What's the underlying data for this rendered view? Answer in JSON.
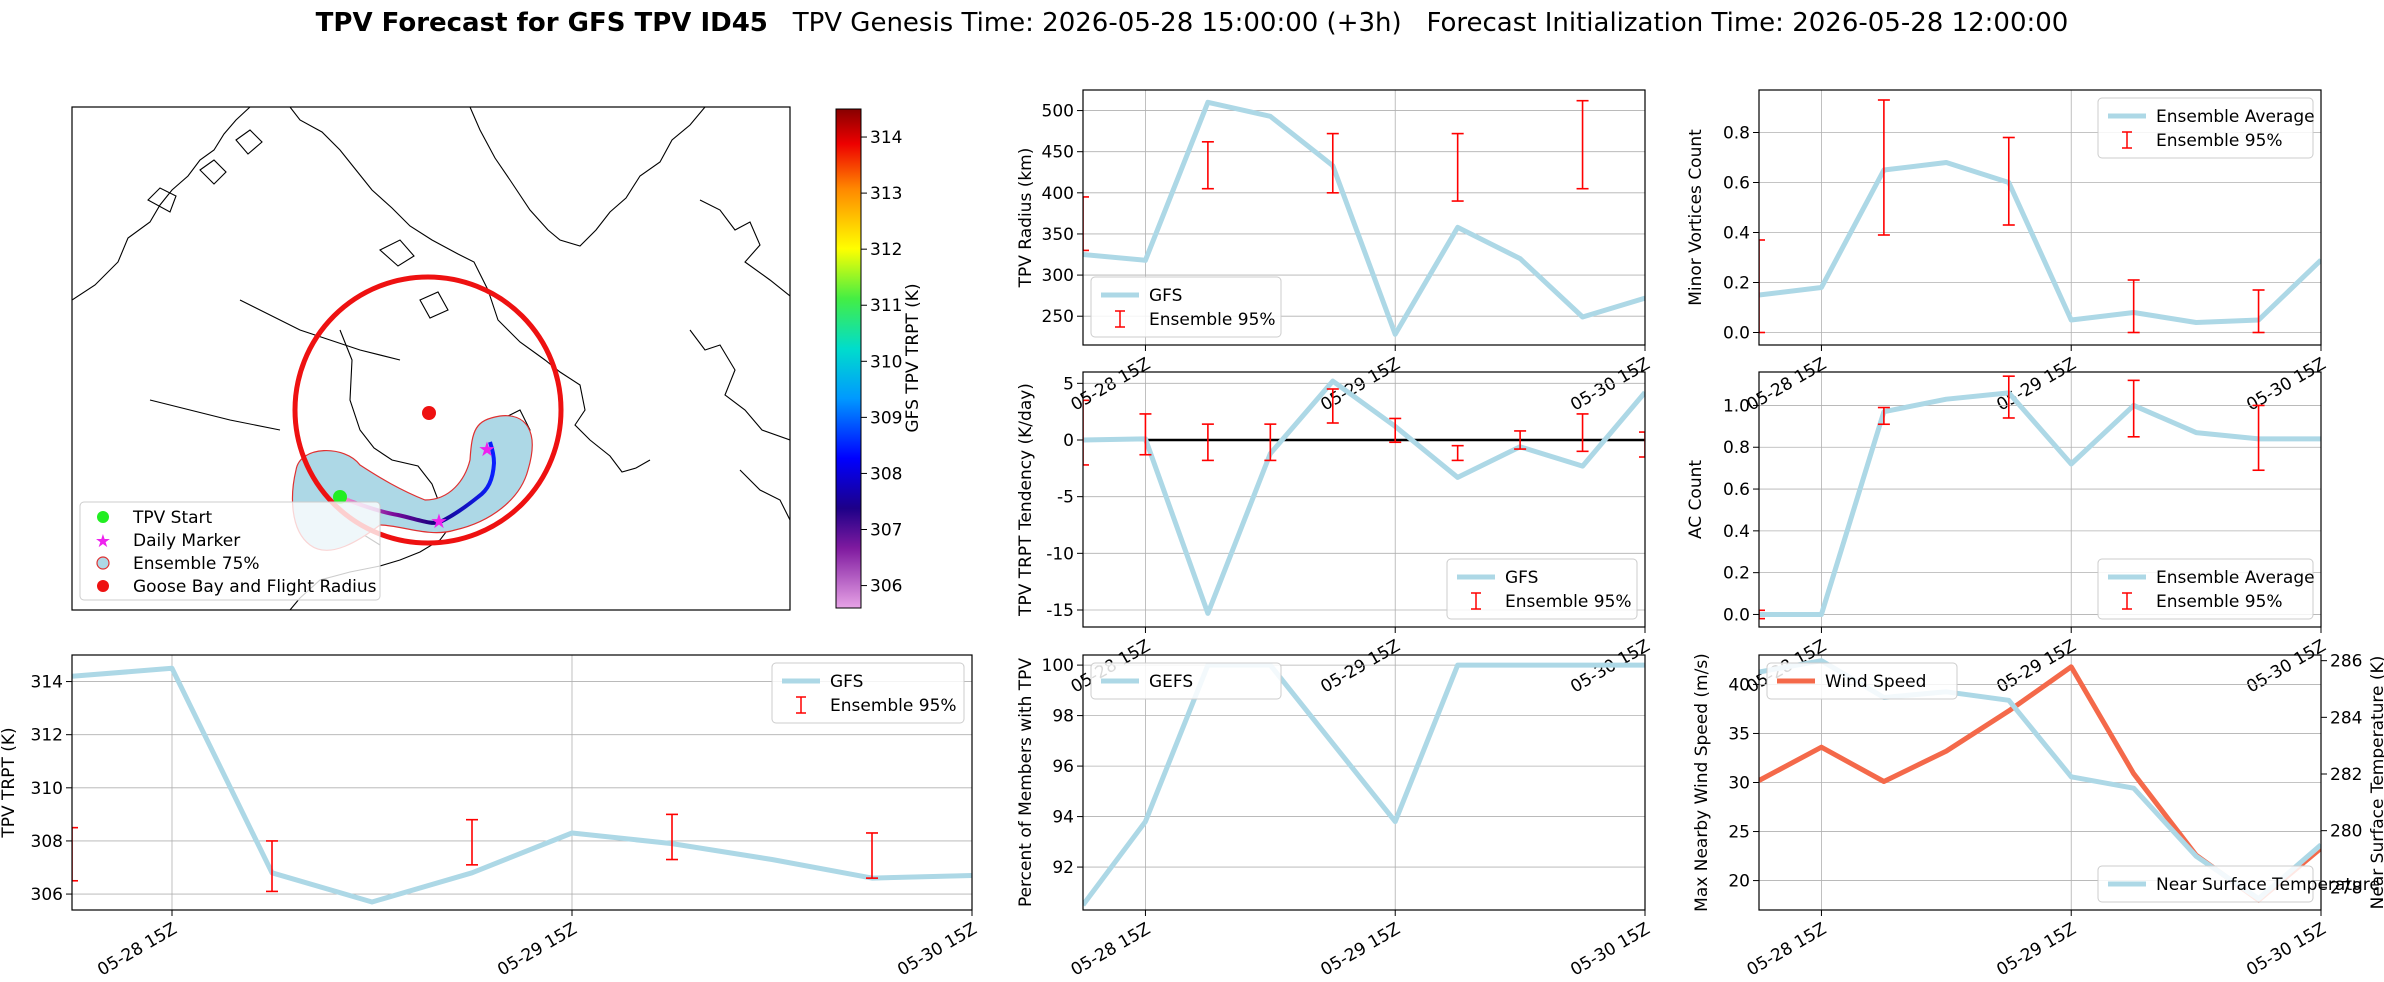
{
  "title": {
    "bold": "TPV Forecast for GFS TPV ID45",
    "rest": "TPV Genesis Time: 2026-05-28 15:00:00 (+3h)   Forecast Initialization Time: 2026-05-28 12:00:00"
  },
  "colors": {
    "main_line": "#add8e6",
    "error_bar": "#ff0000",
    "wind": "#f4694a",
    "temp_axis": "#4169e1"
  },
  "time_ticks": [
    "05-28 15Z",
    "05-29 15Z",
    "05-30 15Z"
  ],
  "map": {
    "colorbar_label": "GFS TPV TRPT (K)",
    "colorbar_ticks": [
      306,
      307,
      308,
      309,
      310,
      311,
      312,
      313,
      314
    ],
    "legend": [
      "TPV Start",
      "Daily Marker",
      "Ensemble 75%",
      "Goose Bay and Flight Radius"
    ]
  },
  "chart_data": [
    {
      "id": "radius",
      "type": "line",
      "ylabel": "TPV Radius (km)",
      "xlim": [
        0,
        18
      ],
      "ylim": [
        215,
        525
      ],
      "yticks": [
        250,
        300,
        350,
        400,
        450,
        500
      ],
      "series": [
        {
          "name": "GFS",
          "x": [
            0,
            2,
            4,
            6,
            8,
            10,
            12,
            14,
            16,
            18
          ],
          "y": [
            325,
            318,
            510,
            493,
            433,
            228,
            358,
            320,
            249,
            272
          ]
        }
      ],
      "errbars": {
        "name": "Ensemble 95%",
        "x": [
          0,
          4,
          8,
          12,
          16
        ],
        "lo": [
          330,
          405,
          400,
          390,
          405
        ],
        "hi": [
          395,
          462,
          472,
          472,
          512
        ]
      },
      "legend": "bottom-left"
    },
    {
      "id": "minor",
      "type": "line",
      "ylabel": "Minor Vortices Count",
      "xlim": [
        0,
        18
      ],
      "ylim": [
        -0.05,
        0.97
      ],
      "yticks": [
        0.0,
        0.2,
        0.4,
        0.6,
        0.8
      ],
      "series": [
        {
          "name": "Ensemble Average",
          "x": [
            0,
            2,
            4,
            6,
            8,
            10,
            12,
            14,
            16,
            18
          ],
          "y": [
            0.15,
            0.18,
            0.65,
            0.68,
            0.6,
            0.05,
            0.08,
            0.04,
            0.05,
            0.29
          ]
        }
      ],
      "errbars": {
        "name": "Ensemble 95%",
        "x": [
          0,
          4,
          8,
          12,
          16
        ],
        "lo": [
          0.0,
          0.39,
          0.43,
          0.0,
          0.0
        ],
        "hi": [
          0.37,
          0.93,
          0.78,
          0.21,
          0.17
        ]
      },
      "legend": "top-right"
    },
    {
      "id": "tend",
      "type": "line",
      "ylabel": "TPV TRPT Tendency (K/day)",
      "xlim": [
        0,
        18
      ],
      "ylim": [
        -16.5,
        6
      ],
      "yticks": [
        -15,
        -10,
        -5,
        0,
        5
      ],
      "series": [
        {
          "name": "GFS",
          "x": [
            0,
            2,
            4,
            6,
            8,
            10,
            12,
            14,
            16,
            18
          ],
          "y": [
            0.0,
            0.1,
            -15.3,
            -1.2,
            5.2,
            1.2,
            -3.3,
            -0.6,
            -2.3,
            4.2
          ]
        }
      ],
      "errbars": {
        "name": "Ensemble 95%",
        "x": [
          0,
          2,
          4,
          6,
          8,
          10,
          12,
          14,
          16,
          18
        ],
        "lo": [
          -2.2,
          -1.3,
          -1.8,
          -1.8,
          1.5,
          -0.2,
          -1.8,
          -0.8,
          -1.0,
          -1.5
        ],
        "hi": [
          3.5,
          2.3,
          1.4,
          1.4,
          4.5,
          1.9,
          -0.5,
          0.8,
          2.3,
          0.7
        ]
      },
      "hline": 0,
      "legend": "bottom-right"
    },
    {
      "id": "ac",
      "type": "line",
      "ylabel": "AC Count",
      "xlim": [
        0,
        18
      ],
      "ylim": [
        -0.06,
        1.16
      ],
      "yticks": [
        0.0,
        0.2,
        0.4,
        0.6,
        0.8,
        1.0
      ],
      "series": [
        {
          "name": "Ensemble Average",
          "x": [
            0,
            2,
            4,
            6,
            8,
            10,
            12,
            14,
            16,
            18
          ],
          "y": [
            0.0,
            0.0,
            0.97,
            1.03,
            1.06,
            0.72,
            1.0,
            0.87,
            0.84,
            0.84
          ]
        }
      ],
      "errbars": {
        "name": "Ensemble 95%",
        "x": [
          0,
          4,
          8,
          12,
          16
        ],
        "lo": [
          -0.02,
          0.91,
          0.94,
          0.85,
          0.69
        ],
        "hi": [
          0.02,
          0.99,
          1.14,
          1.12,
          1.0
        ]
      },
      "legend": "bottom-right"
    },
    {
      "id": "trpt",
      "type": "line",
      "ylabel": "TPV TRPT (K)",
      "xlim": [
        0,
        18
      ],
      "ylim": [
        305.4,
        315.0
      ],
      "yticks": [
        306,
        308,
        310,
        312,
        314
      ],
      "series": [
        {
          "name": "GFS",
          "x": [
            0,
            2,
            4,
            6,
            8,
            10,
            12,
            14,
            16,
            18
          ],
          "y": [
            314.2,
            314.5,
            306.8,
            305.7,
            306.8,
            308.3,
            307.9,
            307.3,
            306.6,
            306.7
          ]
        }
      ],
      "errbars": {
        "name": "Ensemble 95%",
        "x": [
          0,
          4,
          8,
          12,
          16
        ],
        "lo": [
          306.5,
          306.1,
          307.1,
          307.3,
          306.6
        ],
        "hi": [
          308.5,
          308.0,
          308.8,
          309.0,
          308.3
        ]
      },
      "legend": "top-right"
    },
    {
      "id": "members",
      "type": "line",
      "ylabel": "Percent of Members with TPV",
      "xlim": [
        0,
        18
      ],
      "ylim": [
        90.3,
        100.4
      ],
      "yticks": [
        92,
        94,
        96,
        98,
        100
      ],
      "series": [
        {
          "name": "GEFS",
          "x": [
            0,
            2,
            4,
            6,
            8,
            10,
            12,
            14,
            16,
            18
          ],
          "y": [
            90.5,
            93.8,
            100,
            100,
            96.9,
            93.8,
            100,
            100,
            100,
            100
          ]
        }
      ],
      "legend": "top-left"
    },
    {
      "id": "wind",
      "type": "line",
      "ylabel": "Max Nearby Wind Speed (m/s)",
      "ylabel2": "Near Surface Temperature (K)",
      "xlim": [
        0,
        18
      ],
      "ylim": [
        17,
        43
      ],
      "yticks": [
        20,
        25,
        30,
        35,
        40
      ],
      "ylim2": [
        277.2,
        286.2
      ],
      "yticks2": [
        278,
        280,
        282,
        284,
        286
      ],
      "series": [
        {
          "name": "Wind Speed",
          "axis": "left",
          "x": [
            0,
            2,
            4,
            6,
            8,
            10,
            12,
            14,
            16,
            18
          ],
          "y": [
            30.2,
            33.6,
            30.1,
            33.2,
            37.3,
            41.8,
            30.9,
            22.6,
            18.0,
            23.3
          ]
        },
        {
          "name": "Near Surface Temperature",
          "axis": "right",
          "x": [
            0,
            2,
            4,
            6,
            8,
            10,
            12,
            14,
            16,
            18
          ],
          "y": [
            285.6,
            286.0,
            284.7,
            284.9,
            284.6,
            281.9,
            281.5,
            279.1,
            277.6,
            279.5
          ]
        }
      ],
      "legend": "top-left / bottom-right"
    }
  ]
}
